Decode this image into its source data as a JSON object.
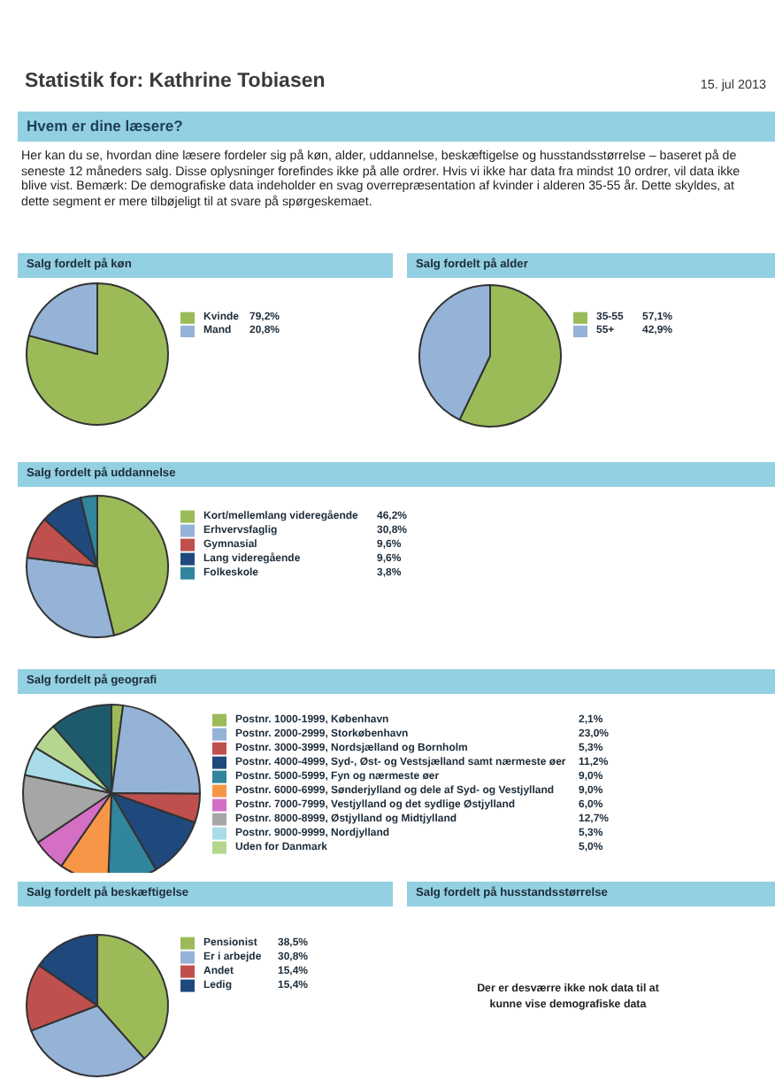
{
  "chart_data": [
    {
      "type": "other",
      "title": "Statistik for: Kathrine Tobiasen",
      "subtitle": "Hvem er dine læsere?",
      "annotations": [
        "15. jul 2013",
        "Her kan du se, hvordan dine læsere fordeler sig på køn, alder, uddannelse, beskæftigelse og husstandsstørrelse – baseret på de seneste 12 måneders salg. Disse oplysninger forefindes ikke på alle ordrer. Hvis vi ikke har data fra mindst 10 ordrer, vil data ikke blive vist. Bemærk: De demografiske data indeholder en svag overrepræsentation af kvinder i alderen 35-55 år. Dette skyldes, at dette segment er mere tilbøjeligt til at svare på spørgeskemaet."
      ]
    },
    {
      "type": "pie",
      "title": "Salg fordelt på køn",
      "categories": [
        "Kvinde",
        "Mand"
      ],
      "values": [
        79.2,
        20.8
      ],
      "value_labels": [
        "79,2%",
        "20,8%"
      ],
      "colors": [
        "#9bbb59",
        "#95b3d7"
      ],
      "legend": "right"
    },
    {
      "type": "pie",
      "title": "Salg fordelt på alder",
      "categories": [
        "35-55",
        "55+"
      ],
      "values": [
        57.1,
        42.9
      ],
      "value_labels": [
        "57,1%",
        "42,9%"
      ],
      "colors": [
        "#9bbb59",
        "#95b3d7"
      ],
      "legend": "right"
    },
    {
      "type": "pie",
      "title": "Salg fordelt på uddannelse",
      "categories": [
        "Kort/mellemlang videregående",
        "Erhvervsfaglig",
        "Gymnasial",
        "Lang videregående",
        "Folkeskole"
      ],
      "values": [
        46.2,
        30.8,
        9.6,
        9.6,
        3.8
      ],
      "value_labels": [
        "46,2%",
        "30,8%",
        "9,6%",
        "9,6%",
        "3,8%"
      ],
      "colors": [
        "#9bbb59",
        "#95b3d7",
        "#c0504d",
        "#1f497d",
        "#31859c"
      ],
      "legend": "right"
    },
    {
      "type": "pie",
      "title": "Salg fordelt på geografi",
      "categories": [
        "Postnr. 1000-1999, København",
        "Postnr. 2000-2999, Storkøbenhavn",
        "Postnr. 3000-3999, Nordsjælland og Bornholm",
        "Postnr. 4000-4999, Syd-, Øst- og Vestsjælland samt nærmeste øer",
        "Postnr. 5000-5999, Fyn og nærmeste øer",
        "Postnr. 6000-6999, Sønderjylland og dele af Syd- og Vestjylland",
        "Postnr. 7000-7999, Vestjylland og det sydlige Østjylland",
        "Postnr. 8000-8999, Østjylland og Midtjylland",
        "Postnr. 9000-9999, Nordjylland",
        "Uden for Danmark",
        null
      ],
      "values": [
        2.1,
        23.0,
        5.3,
        11.2,
        9.0,
        9.0,
        6.0,
        12.7,
        5.3,
        5.0,
        11.4
      ],
      "value_labels": [
        "2,1%",
        "23,0%",
        "5,3%",
        "11,2%",
        "9,0%",
        "9,0%",
        "6,0%",
        "12,7%",
        "5,3%",
        "5,0%",
        null
      ],
      "colors": [
        "#9bbb59",
        "#95b3d7",
        "#c0504d",
        "#1f497d",
        "#31859c",
        "#f79646",
        "#d46fc4",
        "#a6a6a6",
        "#a9dce8",
        "#b5d68f",
        "#1d5a6c"
      ],
      "legend": "right"
    },
    {
      "type": "pie",
      "title": "Salg fordelt på beskæftigelse",
      "categories": [
        "Pensionist",
        "Er i arbejde",
        "Andet",
        "Ledig"
      ],
      "values": [
        38.5,
        30.8,
        15.4,
        15.4
      ],
      "value_labels": [
        "38,5%",
        "30,8%",
        "15,4%",
        "15,4%"
      ],
      "colors": [
        "#9bbb59",
        "#95b3d7",
        "#c0504d",
        "#1f497d"
      ],
      "legend": "right"
    },
    {
      "type": "other",
      "title": "Salg fordelt på husstandsstørrelse",
      "annotations": [
        "Der er desværre ikke nok data til at kunne vise demografiske data"
      ]
    }
  ]
}
